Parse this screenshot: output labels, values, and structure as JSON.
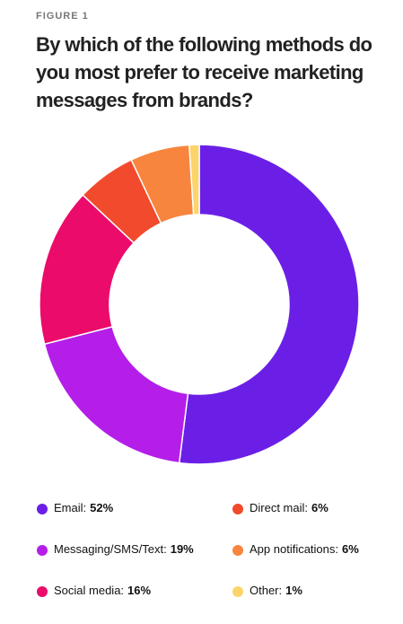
{
  "chart_data": {
    "type": "donut",
    "kicker": "FIGURE 1",
    "title": "By which of the following methods do you most prefer to receive marketing messages from brands?",
    "categories": [
      "Email:",
      "Messaging/SMS/Text:",
      "Social media:",
      "Direct mail:",
      "App notifications:",
      "Other:"
    ],
    "values": [
      52,
      19,
      16,
      6,
      6,
      1
    ],
    "value_labels": [
      "52%",
      "19%",
      "16%",
      "6%",
      "6%",
      "1%"
    ],
    "colors": [
      "#6b1fe6",
      "#b41ee8",
      "#ea0b6b",
      "#f24a2c",
      "#f8853d",
      "#fcd46a"
    ]
  }
}
